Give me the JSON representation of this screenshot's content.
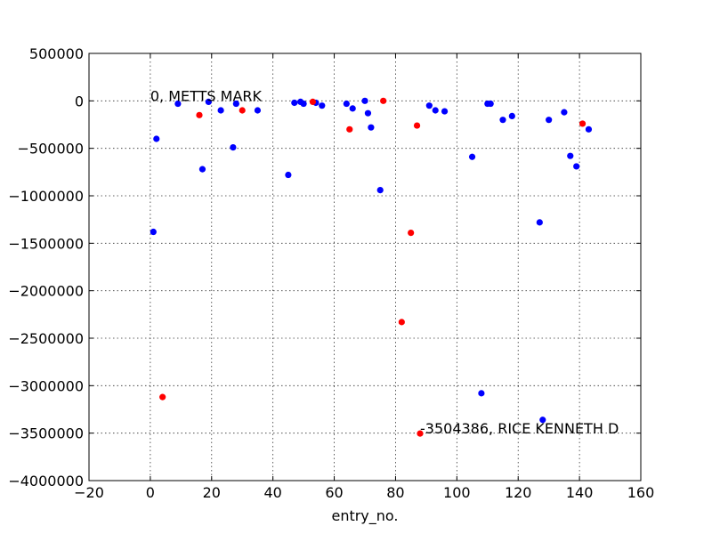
{
  "chart_data": {
    "type": "scatter",
    "title": "",
    "xlabel": "entry_no.",
    "ylabel": "",
    "xlim": [
      -20,
      160
    ],
    "ylim": [
      -4000000,
      500000
    ],
    "xticks": [
      -20,
      0,
      20,
      40,
      60,
      80,
      100,
      120,
      140,
      160
    ],
    "yticks": [
      500000,
      0,
      -500000,
      -1000000,
      -1500000,
      -2000000,
      -2500000,
      -3000000,
      -3500000,
      -4000000
    ],
    "grid": true,
    "colors": {
      "blue": "#0000ff",
      "red": "#ff0000"
    },
    "series": [
      {
        "color": "blue",
        "x": [
          1,
          2,
          9,
          17,
          19,
          23,
          27,
          28,
          35,
          45,
          47,
          49,
          50,
          54,
          56,
          64,
          66,
          70,
          71,
          72,
          75,
          91,
          93,
          96,
          105,
          108,
          110,
          111,
          115,
          118,
          127,
          128,
          130,
          135,
          137,
          139,
          143
        ],
        "y": [
          -1380000,
          -400000,
          -30000,
          -720000,
          -10000,
          -100000,
          -490000,
          -30000,
          -100000,
          -780000,
          -20000,
          -10000,
          -30000,
          -20000,
          -50000,
          -30000,
          -80000,
          0,
          -130000,
          -280000,
          -940000,
          -50000,
          -100000,
          -110000,
          -590000,
          -3080000,
          -30000,
          -30000,
          -200000,
          -160000,
          -1280000,
          -3360000,
          -200000,
          -120000,
          -580000,
          -690000,
          -300000
        ]
      },
      {
        "color": "red",
        "x": [
          4,
          16,
          30,
          53,
          65,
          76,
          82,
          85,
          87,
          88,
          141
        ],
        "y": [
          -3120000,
          -150000,
          -100000,
          -10000,
          -300000,
          0,
          -2330000,
          -1390000,
          -260000,
          -3504386,
          -240000
        ]
      }
    ],
    "annotations": [
      {
        "text": "0, METTS MARK",
        "x": 0,
        "y": 0
      },
      {
        "text": "-3504386, RICE KENNETH D",
        "x": 88,
        "y": -3504386
      }
    ]
  }
}
